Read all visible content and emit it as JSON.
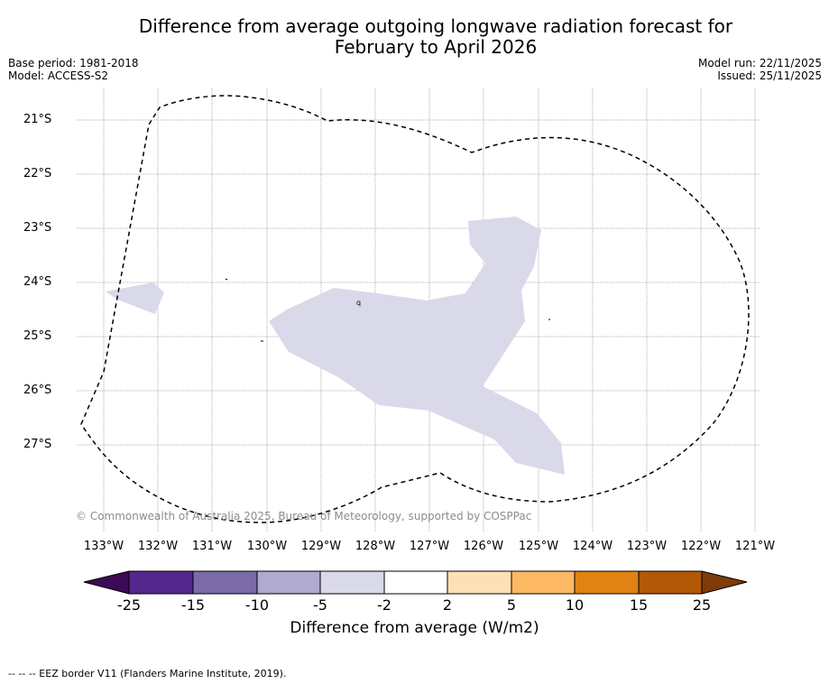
{
  "title_line1": "Difference from average outgoing longwave radiation forecast for",
  "title_line2": "February to April 2026",
  "meta_left": {
    "base_period": "Base period: 1981-2018",
    "model": "Model: ACCESS-S2"
  },
  "meta_right": {
    "model_run": "Model run: 22/11/2025",
    "issued": "Issued: 25/11/2025"
  },
  "lat_labels": [
    "21°S",
    "22°S",
    "23°S",
    "24°S",
    "25°S",
    "26°S",
    "27°S"
  ],
  "lon_labels": [
    "133°W",
    "132°W",
    "131°W",
    "130°W",
    "129°W",
    "128°W",
    "127°W",
    "126°W",
    "125°W",
    "124°W",
    "123°W",
    "122°W",
    "121°W"
  ],
  "copyright": "© Commonwealth of Australia 2025, Bureau of Meteorology, supported by COSPPac",
  "map_annotation": "q",
  "colorbar": {
    "title": "Difference from average (W/m2)",
    "tick_labels": [
      "-25",
      "-15",
      "-10",
      "-5",
      "-2",
      "2",
      "5",
      "10",
      "15",
      "25"
    ],
    "colors": [
      "#3d0a56",
      "#54278f",
      "#7a6aa8",
      "#b0a9d0",
      "#d9d9ea",
      "#ffffff",
      "#fee0b6",
      "#fdb863",
      "#e08214",
      "#b35806",
      "#7f3b08"
    ]
  },
  "shaded_category_color": "#d9d9ea",
  "legend_note": "--  --  -- EEZ border V11 (Flanders Marine Institute, 2019)."
}
